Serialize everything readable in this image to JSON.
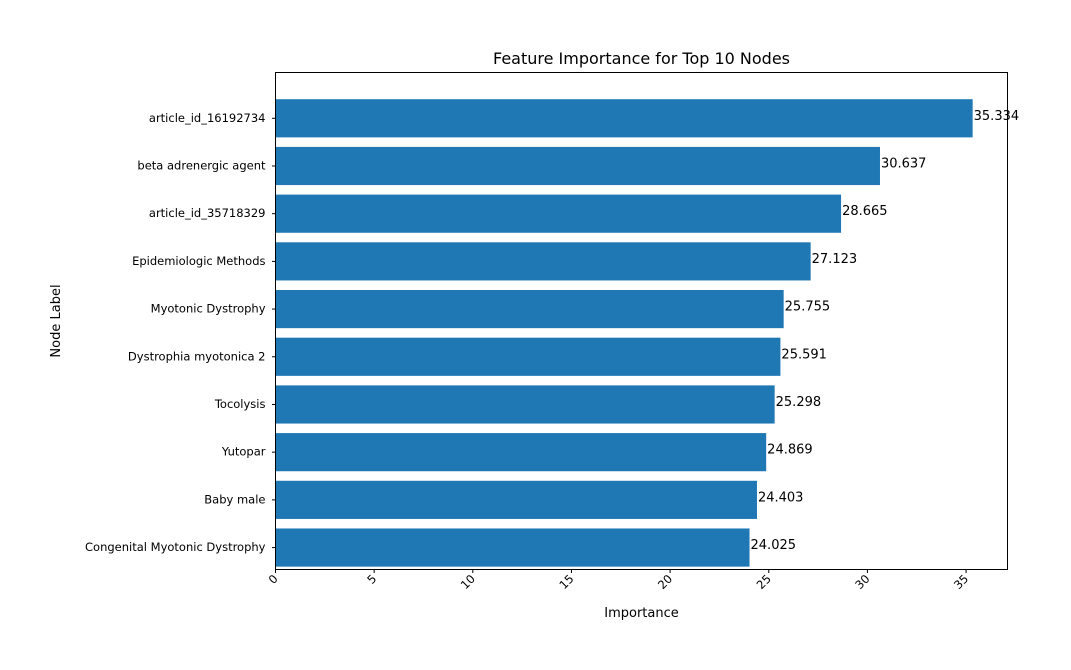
{
  "chart_data": {
    "type": "bar",
    "orientation": "horizontal",
    "title": "Feature Importance for Top 10 Nodes",
    "xlabel": "Importance",
    "ylabel": "Node Label",
    "categories": [
      "article_id_16192734",
      "beta adrenergic agent",
      "article_id_35718329",
      "Epidemiologic Methods",
      "Myotonic Dystrophy",
      "Dystrophia myotonica 2",
      "Tocolysis",
      "Yutopar",
      "Baby male",
      "Congenital Myotonic Dystrophy"
    ],
    "values": [
      35.334,
      30.637,
      28.665,
      27.123,
      25.755,
      25.591,
      25.298,
      24.869,
      24.403,
      24.025
    ],
    "data_labels": [
      "35.334",
      "30.637",
      "28.665",
      "27.123",
      "25.755",
      "25.591",
      "25.298",
      "24.869",
      "24.403",
      "24.025"
    ],
    "xlim": [
      0,
      37.1
    ],
    "xticks": [
      0,
      5,
      10,
      15,
      20,
      25,
      30,
      35
    ],
    "xtick_labels": [
      "0",
      "5",
      "10",
      "15",
      "20",
      "25",
      "30",
      "35"
    ],
    "bar_color": "#1f77b4",
    "grid": false,
    "legend": "none"
  }
}
